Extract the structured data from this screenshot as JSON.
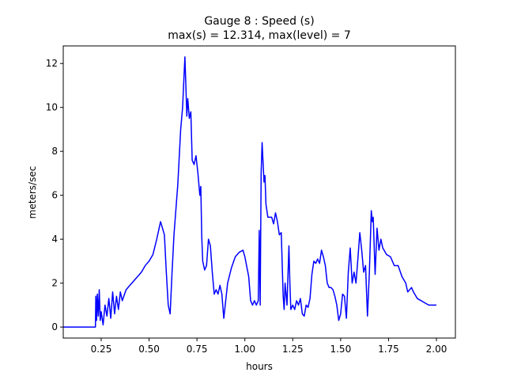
{
  "chart_data": {
    "type": "line",
    "title": "Gauge 8 : Speed (s)",
    "subtitle": "max(s) =  12.314,    max(level) = 7",
    "x_label": "hours",
    "y_label": "meters/sec",
    "xlim": [
      0.052,
      2.099
    ],
    "ylim": [
      -0.5,
      12.8
    ],
    "xticks": [
      {
        "value": 0.25,
        "label": "0.25"
      },
      {
        "value": 0.5,
        "label": "0.50"
      },
      {
        "value": 0.75,
        "label": "0.75"
      },
      {
        "value": 1,
        "label": "1.00"
      },
      {
        "value": 1.25,
        "label": "1.25"
      },
      {
        "value": 1.5,
        "label": "1.50"
      },
      {
        "value": 1.75,
        "label": "1.75"
      },
      {
        "value": 2,
        "label": "2.00"
      }
    ],
    "yticks": [
      0,
      2,
      4,
      6,
      8,
      10,
      12
    ],
    "grid": false,
    "series": [
      {
        "name": "s",
        "color": "#0000ff",
        "x": [
          0.052,
          0.22,
          0.222,
          0.226,
          0.23,
          0.235,
          0.24,
          0.245,
          0.25,
          0.26,
          0.27,
          0.28,
          0.29,
          0.3,
          0.31,
          0.32,
          0.33,
          0.34,
          0.35,
          0.36,
          0.38,
          0.4,
          0.42,
          0.44,
          0.46,
          0.48,
          0.5,
          0.52,
          0.54,
          0.56,
          0.58,
          0.59,
          0.6,
          0.61,
          0.62,
          0.63,
          0.65,
          0.665,
          0.675,
          0.687,
          0.692,
          0.697,
          0.702,
          0.71,
          0.718,
          0.725,
          0.735,
          0.745,
          0.755,
          0.765,
          0.77,
          0.775,
          0.78,
          0.79,
          0.8,
          0.81,
          0.82,
          0.83,
          0.84,
          0.85,
          0.86,
          0.87,
          0.88,
          0.89,
          0.9,
          0.91,
          0.93,
          0.95,
          0.97,
          0.99,
          1.0,
          1.02,
          1.03,
          1.04,
          1.05,
          1.06,
          1.07,
          1.075,
          1.08,
          1.085,
          1.09,
          1.1,
          1.105,
          1.11,
          1.12,
          1.14,
          1.15,
          1.16,
          1.17,
          1.18,
          1.19,
          1.2,
          1.205,
          1.21,
          1.22,
          1.23,
          1.235,
          1.24,
          1.25,
          1.26,
          1.27,
          1.28,
          1.29,
          1.3,
          1.31,
          1.32,
          1.33,
          1.34,
          1.35,
          1.36,
          1.37,
          1.38,
          1.39,
          1.4,
          1.41,
          1.42,
          1.43,
          1.44,
          1.45,
          1.46,
          1.47,
          1.48,
          1.49,
          1.5,
          1.51,
          1.52,
          1.53,
          1.54,
          1.55,
          1.56,
          1.57,
          1.58,
          1.59,
          1.6,
          1.61,
          1.62,
          1.63,
          1.64,
          1.65,
          1.66,
          1.665,
          1.67,
          1.68,
          1.69,
          1.7,
          1.71,
          1.72,
          1.74,
          1.76,
          1.78,
          1.8,
          1.82,
          1.84,
          1.85,
          1.86,
          1.87,
          1.88,
          1.9,
          1.92,
          1.94,
          1.96,
          1.98,
          2.0
        ],
        "values": [
          0,
          0,
          1.4,
          0.3,
          1.5,
          0.5,
          1.7,
          0.3,
          0.7,
          0.1,
          1.0,
          0.5,
          1.3,
          0.4,
          1.6,
          0.6,
          1.4,
          0.8,
          1.6,
          1.2,
          1.7,
          1.9,
          2.1,
          2.3,
          2.5,
          2.8,
          3.0,
          3.3,
          4.0,
          4.8,
          4.2,
          2.5,
          1.0,
          0.6,
          2.5,
          4.2,
          6.5,
          9.0,
          10.0,
          12.3,
          11.0,
          9.6,
          10.4,
          9.5,
          9.8,
          7.6,
          7.4,
          7.8,
          7.0,
          6.0,
          6.4,
          4.1,
          3.0,
          2.6,
          2.8,
          4.0,
          3.7,
          2.5,
          1.5,
          1.7,
          1.5,
          1.9,
          1.5,
          0.4,
          1.2,
          2.0,
          2.7,
          3.2,
          3.4,
          3.5,
          3.2,
          2.3,
          1.2,
          1.0,
          1.2,
          1.0,
          1.2,
          4.4,
          1.0,
          7.0,
          8.4,
          6.6,
          6.9,
          5.6,
          5.0,
          5.0,
          4.7,
          5.2,
          4.8,
          4.2,
          4.3,
          1.4,
          0.8,
          2.0,
          1.0,
          3.7,
          2.0,
          0.8,
          1.0,
          0.8,
          1.2,
          1.0,
          1.3,
          0.6,
          0.5,
          1.0,
          0.9,
          1.3,
          2.4,
          3.0,
          2.9,
          3.1,
          2.9,
          3.5,
          3.2,
          2.8,
          2.0,
          1.8,
          1.8,
          1.7,
          1.4,
          1.0,
          0.3,
          0.6,
          1.5,
          1.4,
          0.4,
          2.5,
          3.6,
          2.0,
          2.5,
          2.0,
          3.1,
          4.3,
          3.5,
          2.5,
          2.8,
          0.5,
          2.5,
          5.3,
          4.8,
          5.0,
          2.4,
          4.5,
          3.5,
          4.0,
          3.6,
          3.3,
          3.2,
          2.8,
          2.8,
          2.3,
          2.0,
          1.6,
          1.7,
          1.8,
          1.6,
          1.3,
          1.2,
          1.1,
          1.0,
          1.0,
          1.0
        ]
      }
    ]
  }
}
